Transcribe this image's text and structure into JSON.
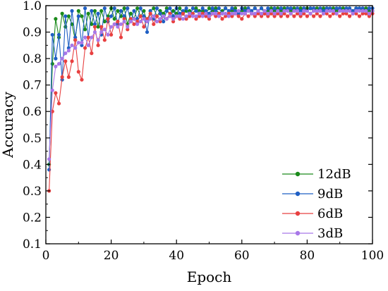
{
  "chart_data": {
    "type": "line",
    "xlabel": "Epoch",
    "ylabel": "Accuracy",
    "xlim": [
      0,
      100
    ],
    "ylim": [
      0.1,
      1.0
    ],
    "x_ticks": [
      0,
      20,
      40,
      60,
      80,
      100
    ],
    "y_ticks": [
      0.1,
      0.2,
      0.3,
      0.4,
      0.5,
      0.6,
      0.7,
      0.8,
      0.9,
      1.0
    ],
    "x_tick_labels": [
      "0",
      "20",
      "40",
      "60",
      "80",
      "100"
    ],
    "y_tick_labels": [
      "0.1",
      "0.2",
      "0.3",
      "0.4",
      "0.5",
      "0.6",
      "0.7",
      "0.8",
      "0.9",
      "1.0"
    ],
    "grid": false,
    "legend_position": "bottom-right",
    "x": [
      1,
      2,
      3,
      4,
      5,
      6,
      7,
      8,
      9,
      10,
      11,
      12,
      13,
      14,
      15,
      16,
      17,
      18,
      19,
      20,
      21,
      22,
      23,
      24,
      25,
      26,
      27,
      28,
      29,
      30,
      31,
      32,
      33,
      34,
      35,
      36,
      37,
      38,
      39,
      40,
      41,
      42,
      43,
      44,
      45,
      46,
      47,
      48,
      49,
      50,
      51,
      52,
      53,
      54,
      55,
      56,
      57,
      58,
      59,
      60,
      61,
      62,
      63,
      64,
      65,
      66,
      67,
      68,
      69,
      70,
      71,
      72,
      73,
      74,
      75,
      76,
      77,
      78,
      79,
      80,
      81,
      82,
      83,
      84,
      85,
      86,
      87,
      88,
      89,
      90,
      91,
      92,
      93,
      94,
      95,
      96,
      97,
      98,
      99,
      100
    ],
    "series": [
      {
        "name": "12dB",
        "color": "#1a8a1a",
        "values": [
          0.4,
          0.78,
          0.95,
          0.88,
          0.97,
          0.92,
          0.96,
          0.93,
          0.87,
          0.98,
          0.96,
          0.91,
          0.97,
          0.93,
          0.98,
          0.92,
          0.98,
          0.94,
          0.96,
          0.99,
          0.95,
          0.98,
          0.96,
          0.99,
          0.93,
          0.97,
          0.95,
          0.99,
          0.96,
          0.98,
          0.94,
          0.98,
          0.99,
          0.96,
          0.98,
          0.97,
          0.99,
          0.96,
          0.98,
          0.97,
          0.99,
          0.97,
          0.98,
          0.98,
          0.97,
          0.99,
          0.98,
          0.98,
          0.97,
          0.99,
          0.98,
          0.99,
          0.97,
          0.98,
          0.99,
          0.98,
          0.98,
          0.99,
          0.97,
          0.98,
          0.99,
          0.98,
          0.98,
          0.99,
          0.98,
          0.99,
          0.98,
          0.98,
          0.99,
          0.98,
          0.99,
          0.98,
          0.99,
          0.99,
          0.98,
          0.99,
          0.98,
          0.99,
          0.98,
          0.99,
          0.99,
          0.98,
          0.99,
          0.98,
          0.99,
          0.99,
          0.98,
          0.99,
          0.98,
          0.99,
          0.99,
          0.98,
          0.99,
          0.98,
          0.99,
          0.99,
          0.98,
          0.99,
          0.98,
          0.98
        ]
      },
      {
        "name": "9dB",
        "color": "#1f5fc4",
        "values": [
          0.38,
          0.89,
          0.8,
          0.89,
          0.72,
          0.96,
          0.84,
          0.98,
          0.88,
          0.96,
          0.85,
          0.99,
          0.88,
          0.98,
          0.93,
          0.97,
          0.89,
          0.99,
          0.94,
          0.96,
          0.99,
          0.93,
          0.98,
          0.96,
          0.99,
          0.94,
          0.98,
          0.95,
          0.99,
          0.96,
          0.9,
          0.98,
          0.95,
          0.99,
          0.97,
          0.94,
          0.98,
          0.99,
          0.96,
          0.99,
          0.97,
          0.98,
          0.99,
          0.96,
          0.99,
          0.98,
          0.97,
          0.99,
          0.98,
          0.97,
          0.99,
          0.98,
          0.99,
          0.97,
          0.99,
          0.98,
          0.99,
          0.98,
          0.97,
          0.99,
          0.98,
          0.99,
          0.98,
          0.99,
          0.98,
          0.99,
          0.97,
          0.99,
          0.98,
          0.99,
          0.98,
          0.99,
          0.98,
          0.99,
          0.99,
          0.98,
          0.99,
          0.98,
          0.99,
          0.98,
          0.99,
          0.99,
          0.98,
          0.99,
          0.98,
          0.99,
          0.99,
          0.98,
          0.99,
          0.99,
          0.98,
          0.99,
          0.99,
          0.98,
          0.99,
          0.99,
          0.99,
          0.98,
          0.99,
          0.99
        ]
      },
      {
        "name": "6dB",
        "color": "#e84040",
        "values": [
          0.3,
          0.6,
          0.67,
          0.63,
          0.73,
          0.79,
          0.73,
          0.79,
          0.87,
          0.75,
          0.72,
          0.84,
          0.88,
          0.82,
          0.92,
          0.85,
          0.92,
          0.87,
          0.95,
          0.89,
          0.93,
          0.94,
          0.88,
          0.95,
          0.91,
          0.95,
          0.93,
          0.94,
          0.96,
          0.92,
          0.95,
          0.97,
          0.93,
          0.96,
          0.94,
          0.96,
          0.95,
          0.97,
          0.94,
          0.96,
          0.95,
          0.97,
          0.95,
          0.96,
          0.97,
          0.95,
          0.96,
          0.97,
          0.96,
          0.95,
          0.97,
          0.96,
          0.97,
          0.95,
          0.96,
          0.97,
          0.96,
          0.97,
          0.96,
          0.95,
          0.97,
          0.96,
          0.97,
          0.96,
          0.97,
          0.96,
          0.97,
          0.96,
          0.97,
          0.96,
          0.97,
          0.96,
          0.97,
          0.96,
          0.97,
          0.96,
          0.97,
          0.96,
          0.97,
          0.96,
          0.97,
          0.96,
          0.97,
          0.96,
          0.97,
          0.97,
          0.96,
          0.97,
          0.97,
          0.96,
          0.97,
          0.97,
          0.96,
          0.97,
          0.97,
          0.96,
          0.97,
          0.97,
          0.96,
          0.97
        ]
      },
      {
        "name": "3dB",
        "color": "#a878e8",
        "values": [
          0.42,
          0.68,
          0.77,
          0.78,
          0.8,
          0.82,
          0.83,
          0.85,
          0.84,
          0.86,
          0.86,
          0.88,
          0.85,
          0.88,
          0.9,
          0.87,
          0.9,
          0.91,
          0.89,
          0.92,
          0.93,
          0.92,
          0.93,
          0.94,
          0.92,
          0.94,
          0.95,
          0.93,
          0.94,
          0.95,
          0.94,
          0.95,
          0.96,
          0.94,
          0.95,
          0.96,
          0.95,
          0.96,
          0.95,
          0.96,
          0.96,
          0.95,
          0.96,
          0.97,
          0.96,
          0.96,
          0.97,
          0.96,
          0.97,
          0.96,
          0.97,
          0.97,
          0.96,
          0.97,
          0.97,
          0.96,
          0.97,
          0.97,
          0.98,
          0.97,
          0.97,
          0.98,
          0.97,
          0.97,
          0.98,
          0.97,
          0.98,
          0.97,
          0.98,
          0.97,
          0.98,
          0.97,
          0.98,
          0.98,
          0.97,
          0.98,
          0.98,
          0.97,
          0.98,
          0.98,
          0.97,
          0.98,
          0.98,
          0.98,
          0.97,
          0.98,
          0.98,
          0.98,
          0.97,
          0.98,
          0.98,
          0.98,
          0.98,
          0.97,
          0.98,
          0.98,
          0.98,
          0.98,
          0.97,
          0.98
        ]
      }
    ]
  }
}
